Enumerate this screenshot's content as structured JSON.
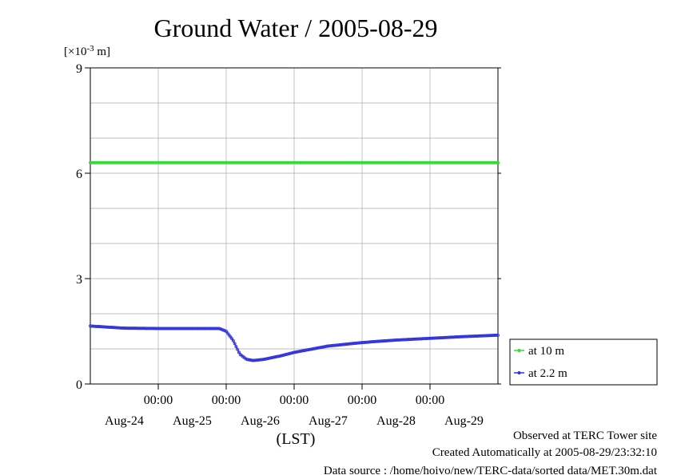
{
  "chart_data": {
    "type": "line",
    "title": "Ground Water / 2005-08-29",
    "yunit": "[×10",
    "yunit_exp": "-3",
    "yunit_tail": " m]",
    "xlabel": "(LST)",
    "ylim": [
      0,
      9
    ],
    "yticks": [
      "0",
      "3",
      "6",
      "9"
    ],
    "xlim_days": [
      0,
      6
    ],
    "x_time_label": "00:00",
    "x_ticks": [
      {
        "time": "00:00",
        "date": "Aug-24"
      },
      {
        "time": "00:00",
        "date": "Aug-25"
      },
      {
        "time": "00:00",
        "date": "Aug-26"
      },
      {
        "time": "00:00",
        "date": "Aug-27"
      },
      {
        "time": "00:00",
        "date": "Aug-28"
      },
      {
        "time": "00:00",
        "date": "Aug-29"
      }
    ],
    "grid": true,
    "legend_position": "right",
    "series": [
      {
        "name": "at 10 m",
        "color": "#33dd33",
        "x": [
          0,
          1,
          2,
          3,
          4,
          5,
          6
        ],
        "y": [
          6.3,
          6.3,
          6.3,
          6.3,
          6.3,
          6.3,
          6.3
        ]
      },
      {
        "name": "at 2.2 m",
        "color": "#3333dd",
        "x": [
          0,
          0.5,
          1,
          1.5,
          1.9,
          2.0,
          2.1,
          2.2,
          2.3,
          2.4,
          2.55,
          2.8,
          3.0,
          3.5,
          4.0,
          4.5,
          5.0,
          5.5,
          6.0
        ],
        "y": [
          1.65,
          1.59,
          1.58,
          1.58,
          1.58,
          1.5,
          1.25,
          0.85,
          0.7,
          0.67,
          0.7,
          0.8,
          0.9,
          1.08,
          1.18,
          1.25,
          1.3,
          1.35,
          1.39
        ]
      }
    ]
  },
  "footer": {
    "observed": "Observed at TERC Tower site",
    "created": "Created Automatically at 2005-08-29/23:32:10",
    "source": "Data source : /home/hoivo/new/TERC-data/sorted  data/MET.30m.dat"
  }
}
